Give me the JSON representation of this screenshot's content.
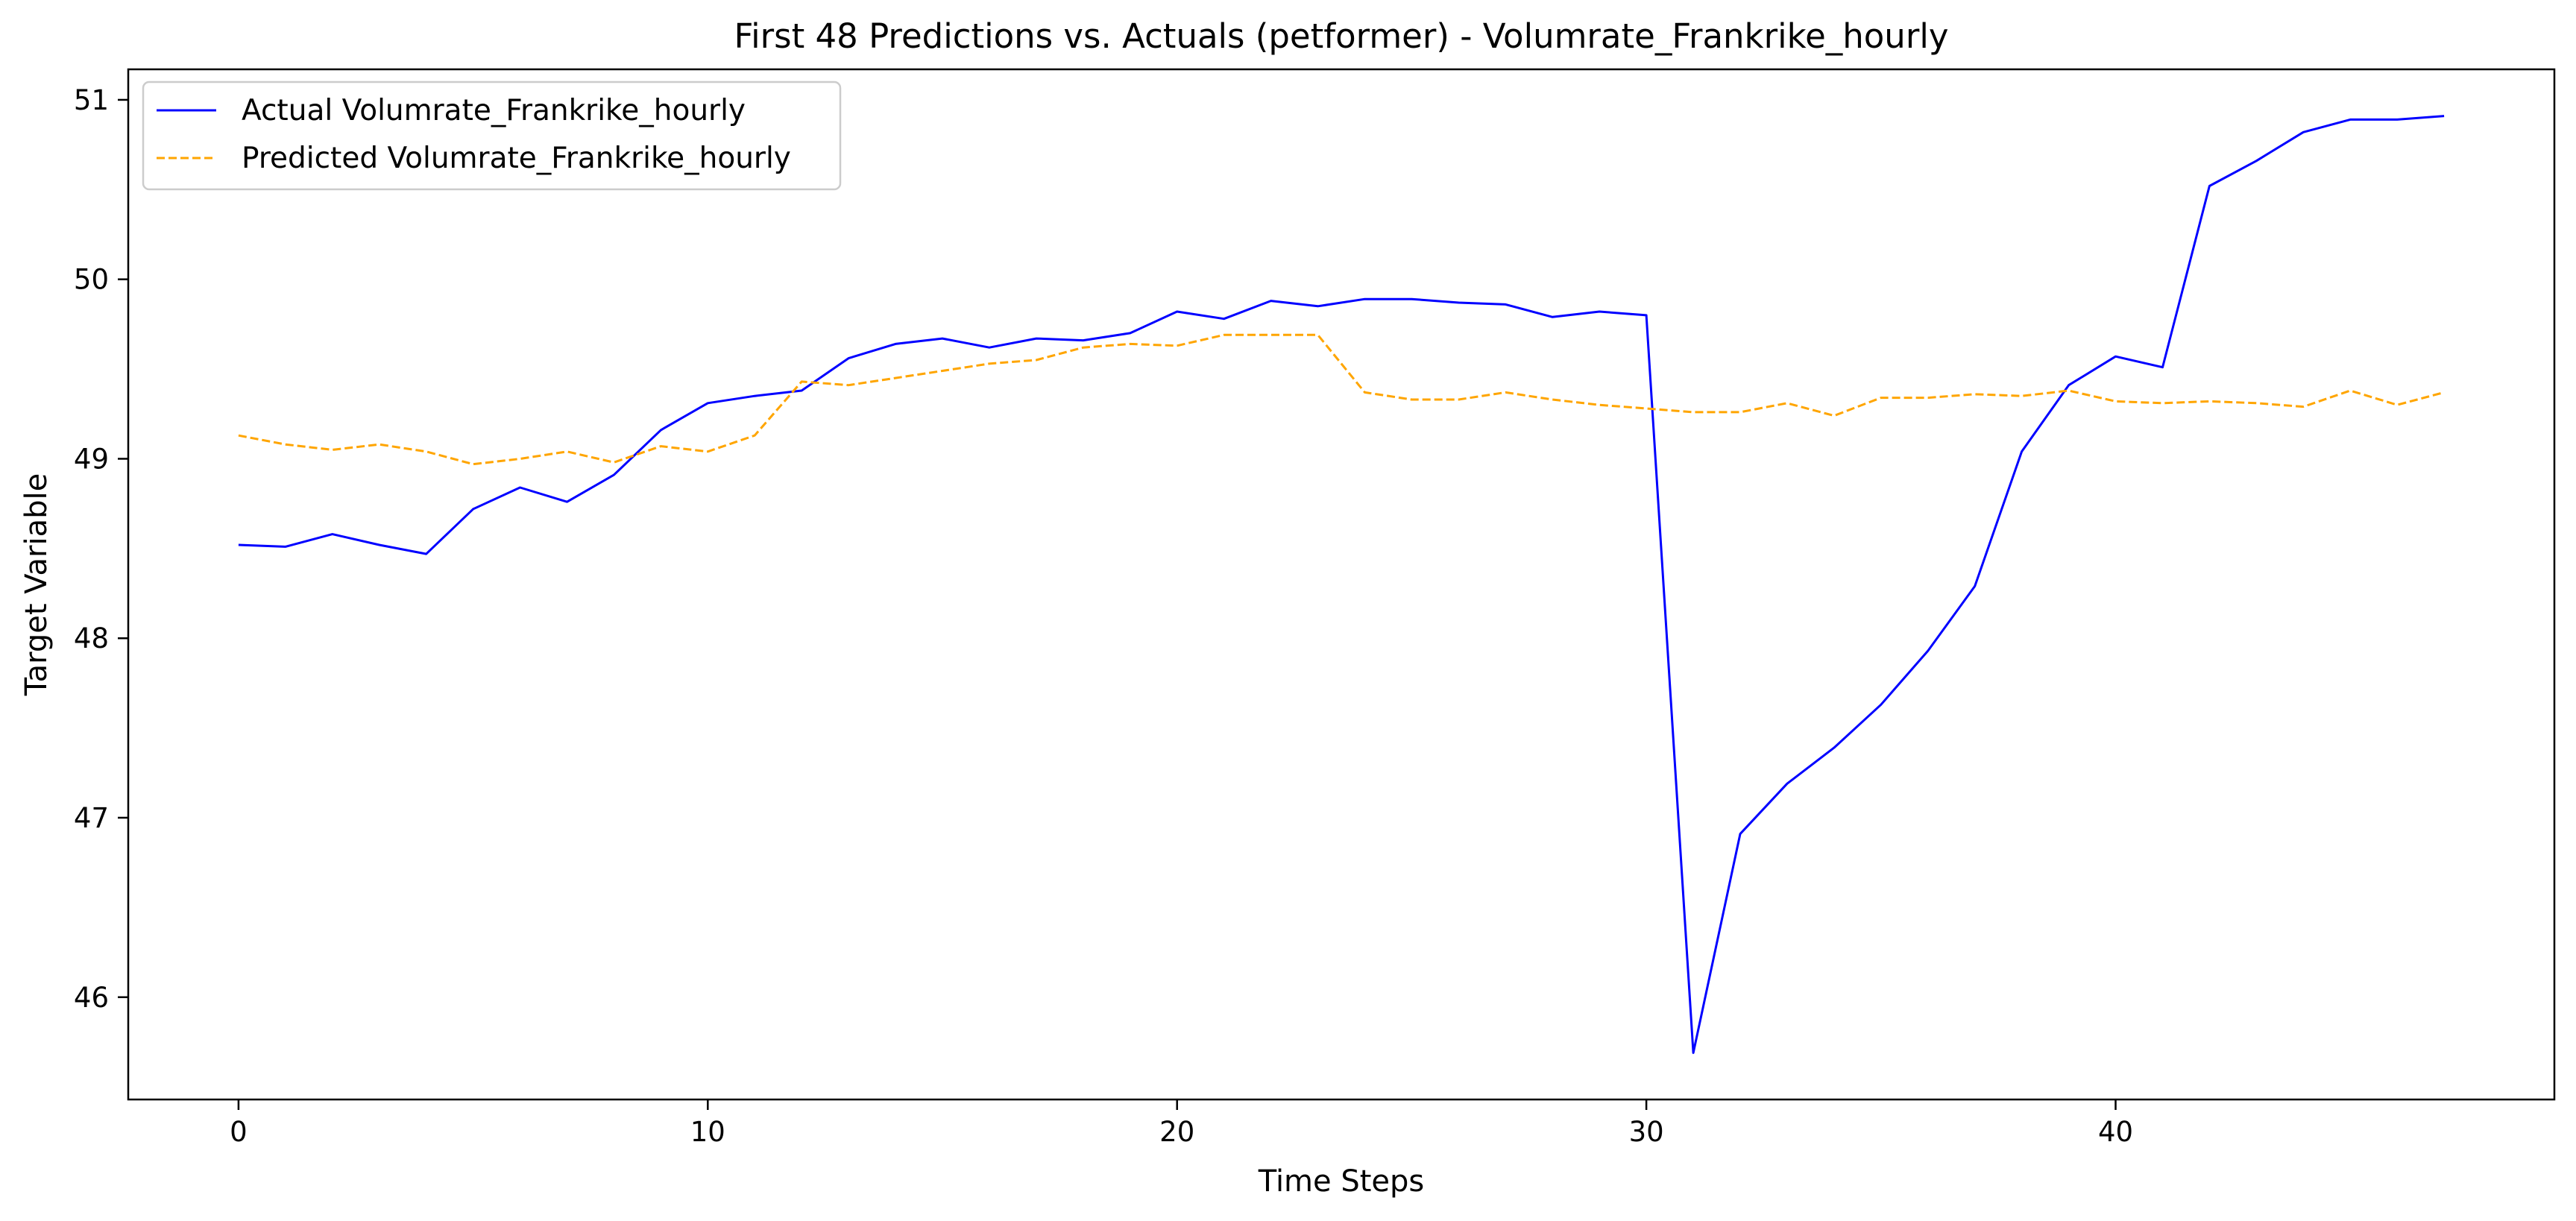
{
  "chart_data": {
    "type": "line",
    "title": "First 48 Predictions vs. Actuals (petformer) - Volumrate_Frankrike_hourly",
    "xlabel": "Time Steps",
    "ylabel": "Target Variable",
    "xlim": [
      -2.35,
      49.35
    ],
    "ylim": [
      45.43,
      51.17
    ],
    "xticks": [
      0,
      10,
      20,
      30,
      40
    ],
    "yticks": [
      46,
      47,
      48,
      49,
      50,
      51
    ],
    "grid": false,
    "legend_position": "top-left",
    "x": [
      0,
      1,
      2,
      3,
      4,
      5,
      6,
      7,
      8,
      9,
      10,
      11,
      12,
      13,
      14,
      15,
      16,
      17,
      18,
      19,
      20,
      21,
      22,
      23,
      24,
      25,
      26,
      27,
      28,
      29,
      30,
      31,
      32,
      33,
      34,
      35,
      36,
      37,
      38,
      39,
      40,
      41,
      42,
      43,
      44,
      45,
      46,
      47
    ],
    "series": [
      {
        "name": "Actual Volumrate_Frankrike_hourly",
        "color": "#0000ff",
        "style": "solid",
        "values": [
          48.52,
          48.51,
          48.58,
          48.52,
          48.47,
          48.72,
          48.84,
          48.76,
          48.91,
          49.16,
          49.31,
          49.35,
          49.38,
          49.56,
          49.64,
          49.67,
          49.62,
          49.67,
          49.66,
          49.7,
          49.82,
          49.78,
          49.88,
          49.85,
          49.89,
          49.89,
          49.87,
          49.86,
          49.79,
          49.82,
          49.8,
          45.69,
          46.91,
          47.19,
          47.39,
          47.63,
          47.93,
          48.29,
          49.04,
          49.41,
          49.57,
          49.51,
          50.52,
          50.66,
          50.82,
          50.89,
          50.89,
          50.91
        ]
      },
      {
        "name": "Predicted Volumrate_Frankrike_hourly",
        "color": "#ffa500",
        "style": "dashed",
        "values": [
          49.13,
          49.08,
          49.05,
          49.08,
          49.04,
          48.97,
          49.0,
          49.04,
          48.98,
          49.07,
          49.04,
          49.13,
          49.43,
          49.41,
          49.45,
          49.49,
          49.53,
          49.55,
          49.62,
          49.64,
          49.63,
          49.69,
          49.69,
          49.69,
          49.37,
          49.33,
          49.33,
          49.37,
          49.33,
          49.3,
          49.28,
          49.26,
          49.26,
          49.31,
          49.24,
          49.34,
          49.34,
          49.36,
          49.35,
          49.38,
          49.32,
          49.31,
          49.32,
          49.31,
          49.29,
          49.38,
          49.3,
          49.37
        ]
      }
    ]
  }
}
